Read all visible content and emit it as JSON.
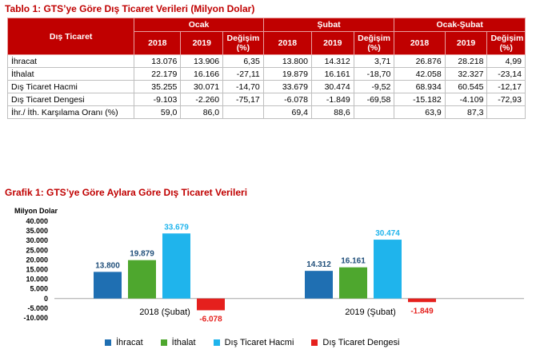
{
  "table_title": "Tablo 1: GTS’ye Göre Dış Ticaret Verileri (Milyon Dolar)",
  "table": {
    "header_top": [
      "Dış Ticaret",
      "Ocak",
      "Şubat",
      "Ocak-Şubat"
    ],
    "header_sub": [
      "2018",
      "2019",
      "Değişim (%)",
      "2018",
      "2019",
      "Değişim (%)",
      "2018",
      "2019",
      "Değişim (%)"
    ],
    "rows": [
      {
        "label": "İhracat",
        "cells": [
          "13.076",
          "13.906",
          "6,35",
          "13.800",
          "14.312",
          "3,71",
          "26.876",
          "28.218",
          "4,99"
        ]
      },
      {
        "label": "İthalat",
        "cells": [
          "22.179",
          "16.166",
          "-27,11",
          "19.879",
          "16.161",
          "-18,70",
          "42.058",
          "32.327",
          "-23,14"
        ]
      },
      {
        "label": "Dış Ticaret Hacmi",
        "cells": [
          "35.255",
          "30.071",
          "-14,70",
          "33.679",
          "30.474",
          "-9,52",
          "68.934",
          "60.545",
          "-12,17"
        ]
      },
      {
        "label": "Dış Ticaret Dengesi",
        "cells": [
          "-9.103",
          "-2.260",
          "-75,17",
          "-6.078",
          "-1.849",
          "-69,58",
          "-15.182",
          "-4.109",
          "-72,93"
        ]
      },
      {
        "label": "İhr./ İth. Karşılama Oranı (%)",
        "cells": [
          "59,0",
          "86,0",
          "",
          "69,4",
          "88,6",
          "",
          "63,9",
          "87,3",
          ""
        ]
      }
    ]
  },
  "chart_title": "Grafik 1: GTS’ye Göre Aylara Göre Dış Ticaret Verileri",
  "chart_data": {
    "type": "bar",
    "ylabel": "Milyon Dolar",
    "ylim": [
      -10000,
      40000
    ],
    "yticks": [
      -10000,
      -5000,
      0,
      5000,
      10000,
      15000,
      20000,
      25000,
      30000,
      35000,
      40000
    ],
    "ytick_labels": [
      "-10.000",
      "-5.000",
      "0",
      "5.000",
      "10.000",
      "15.000",
      "20.000",
      "25.000",
      "30.000",
      "35.000",
      "40.000"
    ],
    "categories": [
      "2018 (Şubat)",
      "2019 (Şubat)"
    ],
    "series": [
      {
        "name": "İhracat",
        "color": "#1f6fb2",
        "values": [
          13800,
          14312
        ],
        "labels": [
          "13.800",
          "14.312"
        ]
      },
      {
        "name": "İthalat",
        "color": "#4ea72e",
        "values": [
          19879,
          16161
        ],
        "labels": [
          "19.879",
          "16.161"
        ]
      },
      {
        "name": "Dış Ticaret Hacmi",
        "color": "#1fb4ec",
        "values": [
          33679,
          30474
        ],
        "labels": [
          "33.679",
          "30.474"
        ]
      },
      {
        "name": "Dış Ticaret Dengesi",
        "color": "#e5201d",
        "values": [
          -6078,
          -1849
        ],
        "labels": [
          "-6.078",
          "-1.849"
        ]
      }
    ],
    "label_colors": {
      "default": "#1f4e79",
      "hacmi": "#1fb4ec",
      "negative": "#e5201d"
    }
  }
}
